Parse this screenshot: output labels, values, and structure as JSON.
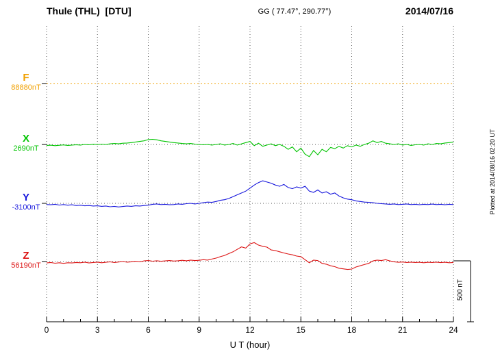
{
  "header": {
    "station": "Thule (THL)  [DTU]",
    "coordinates": "GG ( 77.47°, 290.77°)",
    "date": "2014/07/16"
  },
  "side_note": "Plotted at 2014/08/16 02:20 UT",
  "chart_data": {
    "type": "line",
    "title": "Thule (THL) [DTU] magnetogram 2014/07/16",
    "xlabel": "U T (hour)",
    "xlim": [
      0,
      24
    ],
    "x_ticks": [
      0,
      3,
      6,
      9,
      12,
      15,
      18,
      21,
      24
    ],
    "x_step_hours": 0.25,
    "grid": "dotted vertical lines every 3 hours; dotted horizontal baseline per component",
    "units": "values are nT relative to each component baseline",
    "scale_bar": {
      "label": "500 nT",
      "value_nT": 500
    },
    "colors": {
      "axis": "#000000",
      "grid": "#555555",
      "background": "#ffffff"
    },
    "series": [
      {
        "name": "F",
        "baseline_value": "88880nT",
        "color": "#f0a000",
        "style": "dotted",
        "values": [
          0,
          0
        ]
      },
      {
        "name": "X",
        "baseline_value": "2690nT",
        "color": "#00c400",
        "style": "solid",
        "values": [
          -8,
          -6,
          -10,
          -7,
          -4,
          -8,
          -5,
          -2,
          -5,
          0,
          -3,
          2,
          0,
          3,
          0,
          5,
          8,
          5,
          10,
          12,
          15,
          20,
          25,
          30,
          40,
          42,
          38,
          30,
          25,
          20,
          15,
          12,
          8,
          5,
          8,
          3,
          0,
          -3,
          0,
          -5,
          0,
          5,
          -5,
          0,
          8,
          -5,
          5,
          15,
          25,
          -10,
          10,
          -15,
          -5,
          5,
          -10,
          0,
          -15,
          -40,
          -20,
          -60,
          -30,
          -80,
          -100,
          -50,
          -85,
          -40,
          -60,
          -25,
          -35,
          -15,
          -30,
          -10,
          -20,
          -5,
          -15,
          0,
          10,
          30,
          15,
          25,
          10,
          5,
          0,
          5,
          -5,
          0,
          -8,
          -3,
          0,
          -5,
          5,
          0,
          8,
          5,
          12,
          15,
          20
        ]
      },
      {
        "name": "Y",
        "baseline_value": "-3100nT",
        "color": "#1414dc",
        "style": "solid",
        "values": [
          -10,
          -12,
          -8,
          -14,
          -10,
          -15,
          -12,
          -18,
          -15,
          -20,
          -18,
          -22,
          -20,
          -25,
          -22,
          -28,
          -25,
          -30,
          -26,
          -22,
          -25,
          -20,
          -22,
          -18,
          -15,
          -8,
          -5,
          -10,
          -8,
          -12,
          -10,
          -5,
          -8,
          -3,
          0,
          -5,
          0,
          5,
          10,
          8,
          15,
          25,
          30,
          40,
          55,
          70,
          85,
          100,
          125,
          150,
          170,
          185,
          175,
          165,
          150,
          140,
          155,
          130,
          120,
          135,
          125,
          140,
          100,
          90,
          110,
          85,
          95,
          75,
          85,
          60,
          45,
          35,
          30,
          20,
          15,
          10,
          8,
          5,
          0,
          -3,
          -5,
          -8,
          -5,
          -10,
          -8,
          -5,
          -10,
          -8,
          -12,
          -8,
          -10,
          -6,
          -10,
          -8,
          -12,
          -8,
          -10
        ]
      },
      {
        "name": "Z",
        "baseline_value": "56190nT",
        "color": "#dc1414",
        "style": "solid",
        "values": [
          -12,
          -8,
          -14,
          -10,
          -15,
          -10,
          -12,
          -8,
          -10,
          -5,
          -12,
          -8,
          -5,
          -10,
          -6,
          -3,
          -8,
          -4,
          0,
          -5,
          -2,
          2,
          -3,
          5,
          8,
          3,
          6,
          2,
          5,
          8,
          4,
          6,
          10,
          6,
          12,
          8,
          10,
          15,
          12,
          20,
          28,
          40,
          50,
          65,
          80,
          100,
          120,
          110,
          145,
          155,
          135,
          125,
          118,
          95,
          90,
          80,
          70,
          62,
          55,
          45,
          40,
          15,
          -10,
          12,
          8,
          -15,
          -22,
          -35,
          -42,
          -55,
          -60,
          -65,
          -62,
          -45,
          -35,
          -25,
          -15,
          5,
          12,
          8,
          15,
          5,
          -2,
          -6,
          -4,
          -8,
          -5,
          -8,
          -6,
          -10,
          -6,
          -8,
          -5,
          -9,
          -6,
          -10,
          -8
        ]
      }
    ]
  }
}
